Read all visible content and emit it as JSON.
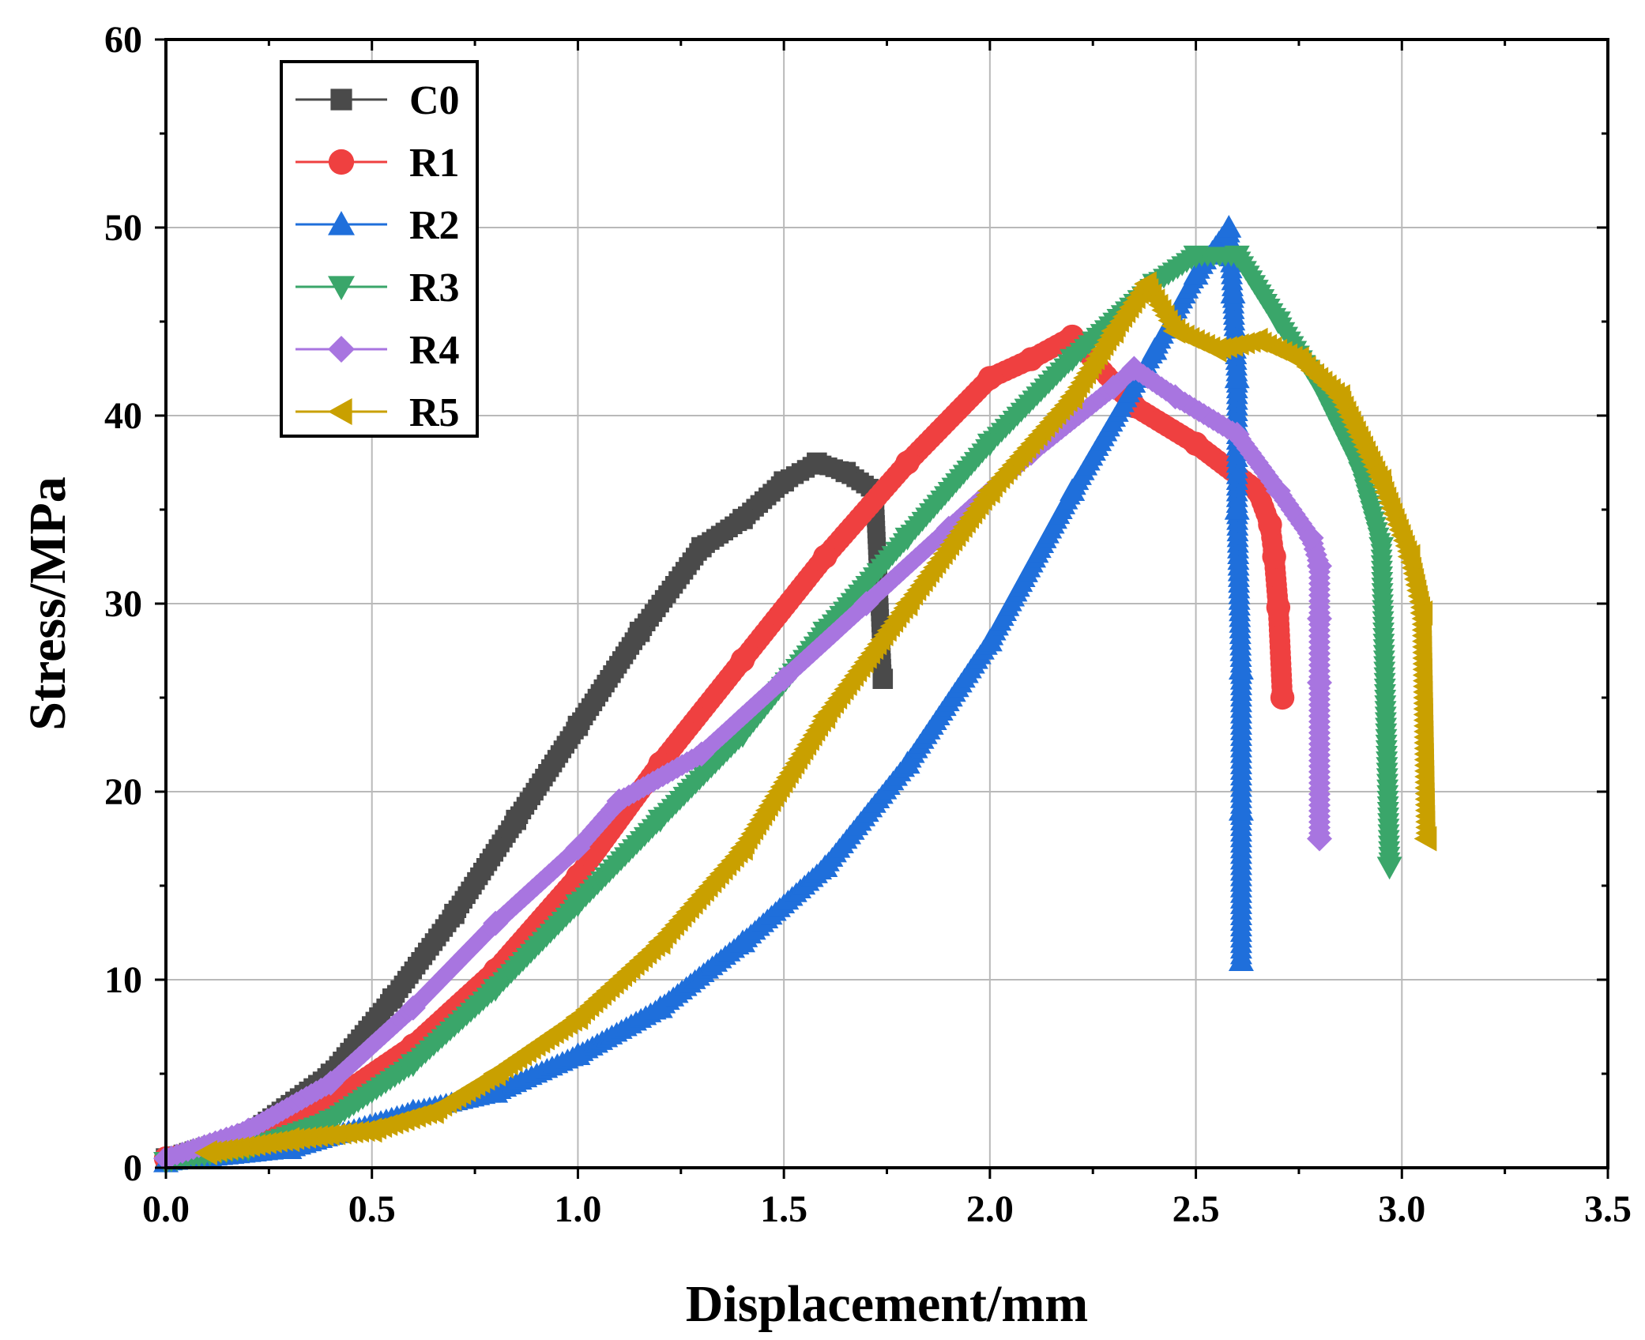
{
  "chart_data": {
    "type": "line",
    "title": "",
    "xlabel": "Displacement/mm",
    "ylabel": "Stress/MPa",
    "xlim": [
      0,
      3.5
    ],
    "ylim": [
      0,
      60
    ],
    "xticks": [
      "0.0",
      "0.5",
      "1.0",
      "1.5",
      "2.0",
      "2.5",
      "3.0",
      "3.5"
    ],
    "yticks": [
      "0",
      "10",
      "20",
      "30",
      "40",
      "50",
      "60"
    ],
    "grid": true,
    "legend_position": "top-left",
    "series": [
      {
        "name": "C0",
        "color": "#4a4a4a",
        "marker": "square",
        "x": [
          0.0,
          0.2,
          0.4,
          0.55,
          0.7,
          0.85,
          1.0,
          1.15,
          1.3,
          1.4,
          1.5,
          1.58,
          1.65,
          1.72,
          1.74
        ],
        "y": [
          0.5,
          1.8,
          5.0,
          9.0,
          13.5,
          18.5,
          23.5,
          28.5,
          33.0,
          34.5,
          36.5,
          37.5,
          37.0,
          36.0,
          26.0
        ]
      },
      {
        "name": "R1",
        "color": "#ef4040",
        "marker": "circle",
        "x": [
          0.0,
          0.2,
          0.4,
          0.6,
          0.8,
          1.0,
          1.2,
          1.4,
          1.6,
          1.8,
          2.0,
          2.1,
          2.2,
          2.35,
          2.5,
          2.65,
          2.68,
          2.69,
          2.7,
          2.71
        ],
        "y": [
          0.5,
          1.5,
          3.5,
          6.5,
          10.5,
          15.5,
          21.5,
          27.0,
          32.5,
          37.5,
          42.0,
          43.0,
          44.2,
          40.5,
          38.5,
          36.0,
          34.2,
          32.5,
          29.8,
          25.0
        ]
      },
      {
        "name": "R2",
        "color": "#1f6fdb",
        "marker": "triangle-up",
        "x": [
          0.0,
          0.3,
          0.6,
          0.8,
          1.0,
          1.2,
          1.4,
          1.6,
          1.8,
          2.0,
          2.2,
          2.4,
          2.5,
          2.58,
          2.59,
          2.6,
          2.6,
          2.61,
          2.61,
          2.61
        ],
        "y": [
          0.3,
          1.0,
          3.0,
          4.0,
          6.0,
          8.5,
          12.0,
          16.0,
          21.5,
          28.0,
          36.0,
          43.5,
          47.5,
          50.0,
          46.5,
          42.0,
          35.0,
          26.5,
          19.0,
          11.0
        ]
      },
      {
        "name": "R3",
        "color": "#3aa66a",
        "marker": "triangle-down",
        "x": [
          0.0,
          0.2,
          0.4,
          0.6,
          0.8,
          1.0,
          1.2,
          1.4,
          1.6,
          1.8,
          2.0,
          2.2,
          2.4,
          2.5,
          2.6,
          2.7,
          2.8,
          2.9,
          2.95,
          2.97
        ],
        "y": [
          0.3,
          1.0,
          2.5,
          5.5,
          9.5,
          14.0,
          18.5,
          23.0,
          28.5,
          33.5,
          38.5,
          43.0,
          47.0,
          48.5,
          48.5,
          45.0,
          41.5,
          37.0,
          33.0,
          16.0
        ]
      },
      {
        "name": "R4",
        "color": "#a875e0",
        "marker": "diamond",
        "x": [
          0.0,
          0.2,
          0.4,
          0.6,
          0.8,
          1.0,
          1.1,
          1.3,
          1.5,
          1.7,
          1.9,
          2.1,
          2.3,
          2.35,
          2.45,
          2.6,
          2.7,
          2.78,
          2.8,
          2.8,
          2.8,
          2.8
        ],
        "y": [
          0.5,
          2.0,
          4.5,
          8.5,
          13.0,
          17.0,
          19.5,
          22.0,
          26.0,
          30.0,
          34.0,
          38.0,
          41.5,
          42.5,
          41.0,
          39.0,
          36.0,
          33.5,
          32.0,
          29.2,
          25.8,
          17.5
        ]
      },
      {
        "name": "R5",
        "color": "#c9a000",
        "marker": "triangle-left",
        "x": [
          0.1,
          0.3,
          0.5,
          0.65,
          0.8,
          1.0,
          1.2,
          1.4,
          1.6,
          1.8,
          2.0,
          2.2,
          2.3,
          2.38,
          2.45,
          2.55,
          2.65,
          2.75,
          2.85,
          2.95,
          3.02,
          3.05,
          3.06
        ],
        "y": [
          0.8,
          1.5,
          2.0,
          3.0,
          5.0,
          8.0,
          12.0,
          17.0,
          24.0,
          30.0,
          36.0,
          41.0,
          44.5,
          47.0,
          44.5,
          43.5,
          44.0,
          43.0,
          41.0,
          36.5,
          32.5,
          29.5,
          17.5
        ]
      }
    ]
  }
}
